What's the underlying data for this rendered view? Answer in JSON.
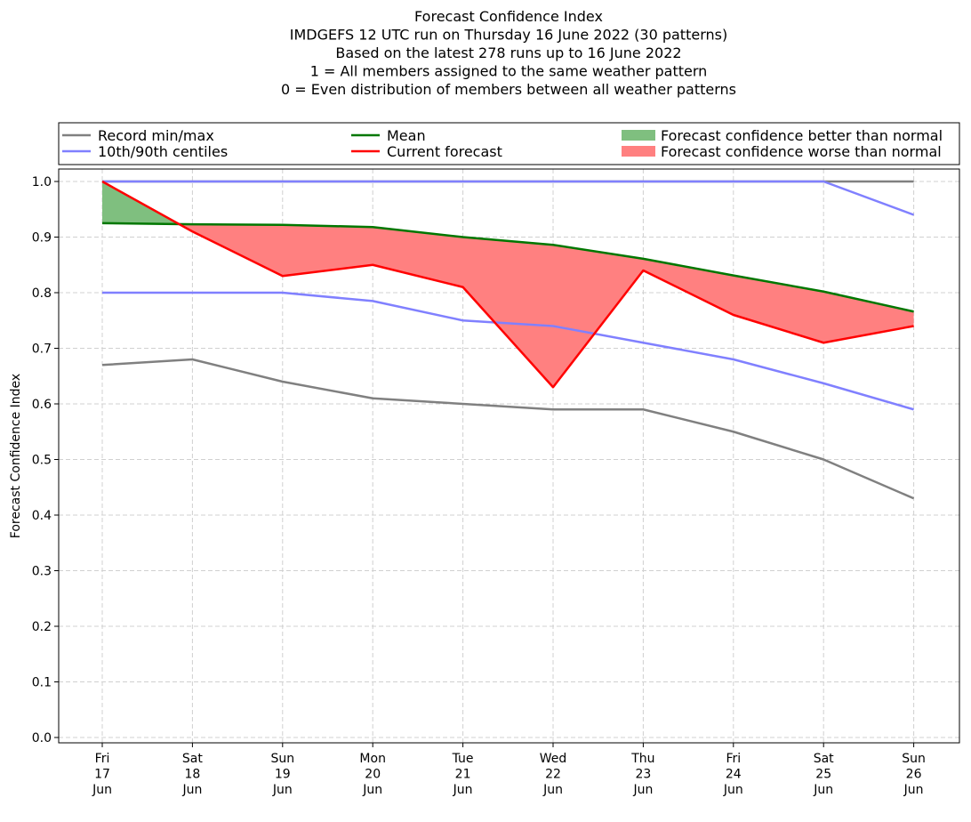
{
  "chart_data": {
    "type": "line",
    "title_lines": [
      "Forecast Confidence Index",
      "IMDGEFS 12 UTC run on Thursday 16 June 2022 (30 patterns)",
      "Based on the latest 278 runs up to 16 June 2022",
      "1 = All members assigned to the same weather pattern",
      "0 = Even distribution of members between all weather patterns"
    ],
    "xlabel": "",
    "ylabel": "Forecast Confidence Index",
    "ylim": [
      0.0,
      1.0
    ],
    "yticks": [
      "0.0",
      "0.1",
      "0.2",
      "0.3",
      "0.4",
      "0.5",
      "0.6",
      "0.7",
      "0.8",
      "0.9",
      "1.0"
    ],
    "categories": [
      [
        "Fri",
        "17",
        "Jun"
      ],
      [
        "Sat",
        "18",
        "Jun"
      ],
      [
        "Sun",
        "19",
        "Jun"
      ],
      [
        "Mon",
        "20",
        "Jun"
      ],
      [
        "Tue",
        "21",
        "Jun"
      ],
      [
        "Wed",
        "22",
        "Jun"
      ],
      [
        "Thu",
        "23",
        "Jun"
      ],
      [
        "Fri",
        "24",
        "Jun"
      ],
      [
        "Sat",
        "25",
        "Jun"
      ],
      [
        "Sun",
        "26",
        "Jun"
      ]
    ],
    "grid": true,
    "legend_placement": "top, above plot, 3 columns",
    "series": [
      {
        "name": "Record min/max",
        "role": "record_min",
        "color": "#808080",
        "values": [
          0.67,
          0.68,
          0.64,
          0.61,
          0.6,
          0.59,
          0.59,
          0.55,
          0.5,
          0.43
        ]
      },
      {
        "role": "record_max",
        "color": "#808080",
        "values": [
          1.0,
          1.0,
          1.0,
          1.0,
          1.0,
          1.0,
          1.0,
          1.0,
          1.0,
          1.0
        ]
      },
      {
        "name": "10th/90th centiles",
        "role": "p10",
        "color": "#8080ff",
        "values": [
          0.8,
          0.8,
          0.8,
          0.785,
          0.75,
          0.74,
          0.71,
          0.68,
          0.637,
          0.59
        ]
      },
      {
        "role": "p90",
        "color": "#8080ff",
        "values": [
          1.0,
          1.0,
          1.0,
          1.0,
          1.0,
          1.0,
          1.0,
          1.0,
          1.0,
          0.94
        ]
      },
      {
        "name": "Mean",
        "role": "mean",
        "color": "#007700",
        "values": [
          0.925,
          0.923,
          0.922,
          0.918,
          0.9,
          0.886,
          0.861,
          0.831,
          0.802,
          0.766
        ]
      },
      {
        "name": "Current forecast",
        "role": "current",
        "color": "#ff0000",
        "values": [
          1.0,
          0.91,
          0.83,
          0.85,
          0.81,
          0.63,
          0.84,
          0.76,
          0.71,
          0.74
        ]
      }
    ],
    "fills": [
      {
        "name": "Forecast confidence better than normal",
        "color": "#7fbf7f"
      },
      {
        "name": "Forecast confidence worse than normal",
        "color": "#ff8080"
      }
    ]
  }
}
